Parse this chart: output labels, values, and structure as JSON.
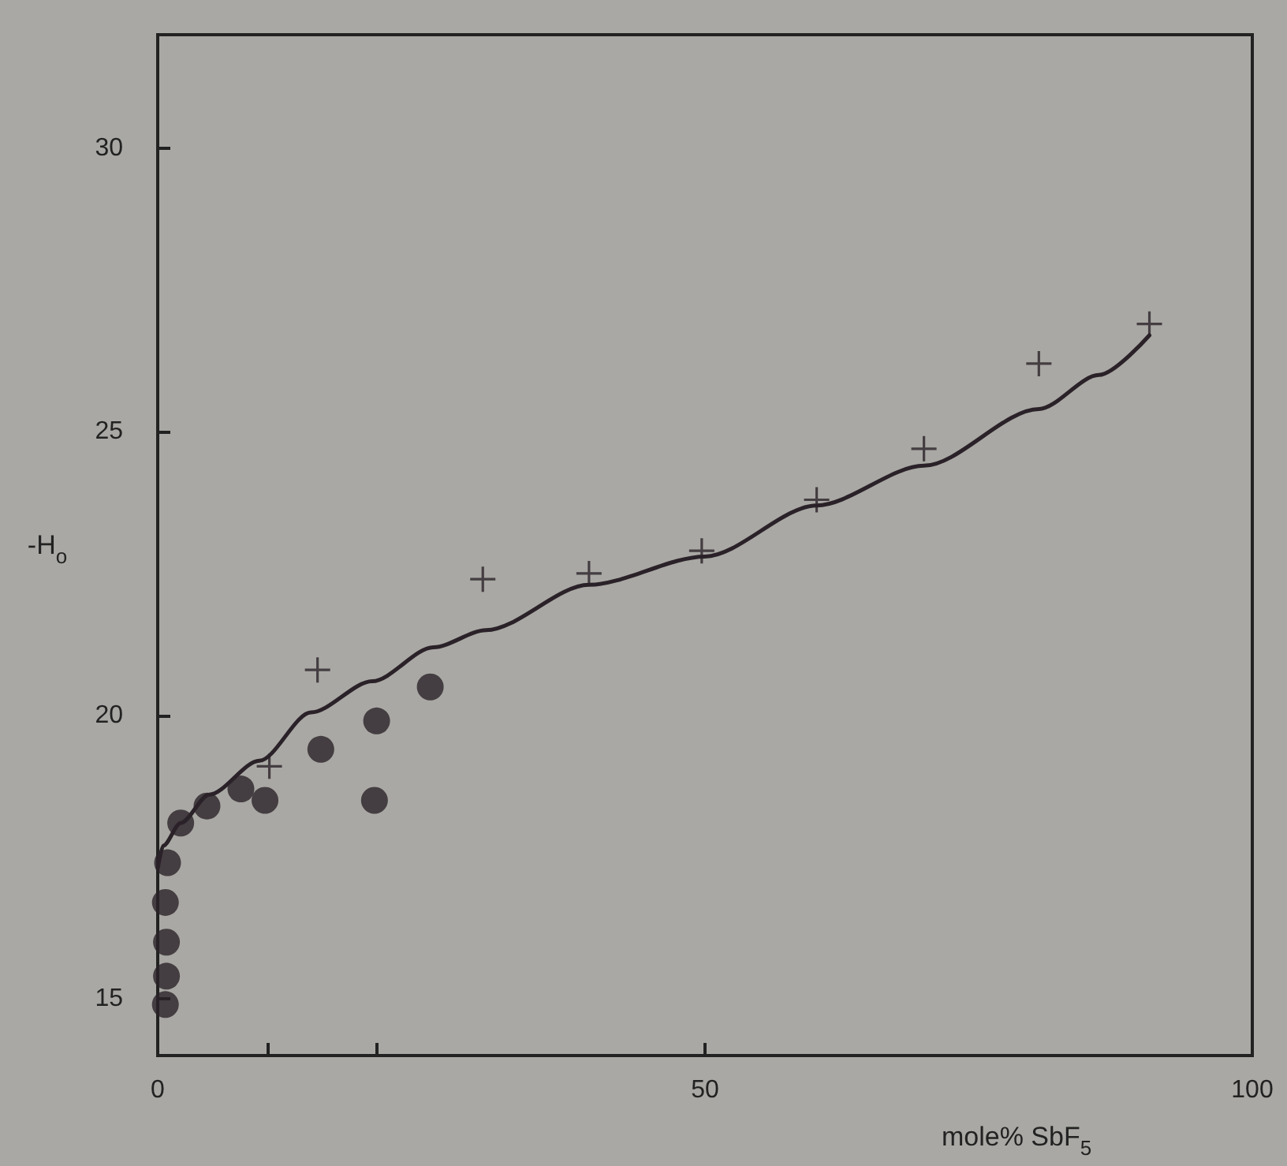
{
  "chart_data": {
    "type": "scatter",
    "xlabel": "mole% SbF$_{5}$",
    "ylabel": "-H$_{o}$",
    "xlim": [
      0,
      100
    ],
    "ylim": [
      14,
      32
    ],
    "xticks": [
      0,
      {
        "value": 10,
        "label": null
      },
      {
        "value": 20,
        "label": null
      },
      50,
      100
    ],
    "yticks": [
      15,
      20,
      25,
      30
    ],
    "grid": false,
    "series": [
      {
        "marker": "cross",
        "color": "#2a2228",
        "x": [
          10.2,
          14.6,
          29.7,
          39.4,
          49.7,
          60.2,
          70,
          80.5,
          90.6
        ],
        "values": [
          19.1,
          20.8,
          22.4,
          22.5,
          22.9,
          23.8,
          24.7,
          26.2,
          26.9
        ]
      },
      {
        "marker": "circle",
        "color": "#2a2228",
        "x": [
          7.6,
          14.9,
          20,
          24.9
        ],
        "values": [
          18.7,
          19.4,
          19.9,
          20.5
        ]
      },
      {
        "marker": "circle",
        "color": "#2a2228",
        "x": [
          0.7,
          0.8,
          0.8,
          0.7,
          0.9,
          2.1,
          4.5,
          9.8,
          19.8
        ],
        "values": [
          14.9,
          15.4,
          16,
          16.7,
          17.4,
          18.1,
          18.4,
          18.5,
          18.5
        ]
      },
      {
        "type": "line",
        "marker": "none",
        "line_style": "solid",
        "color": "#2a2228",
        "x": [
          0,
          0.5,
          2.1,
          4.7,
          9.3,
          14,
          19.6,
          25.2,
          30,
          39.4,
          50,
          60.2,
          70,
          80.5,
          86,
          90.6
        ],
        "values": [
          17.3,
          17.7,
          18.1,
          18.6,
          19.2,
          20.05,
          20.6,
          21.2,
          21.5,
          22.3,
          22.8,
          23.7,
          24.4,
          25.4,
          26,
          26.7
        ]
      }
    ]
  }
}
